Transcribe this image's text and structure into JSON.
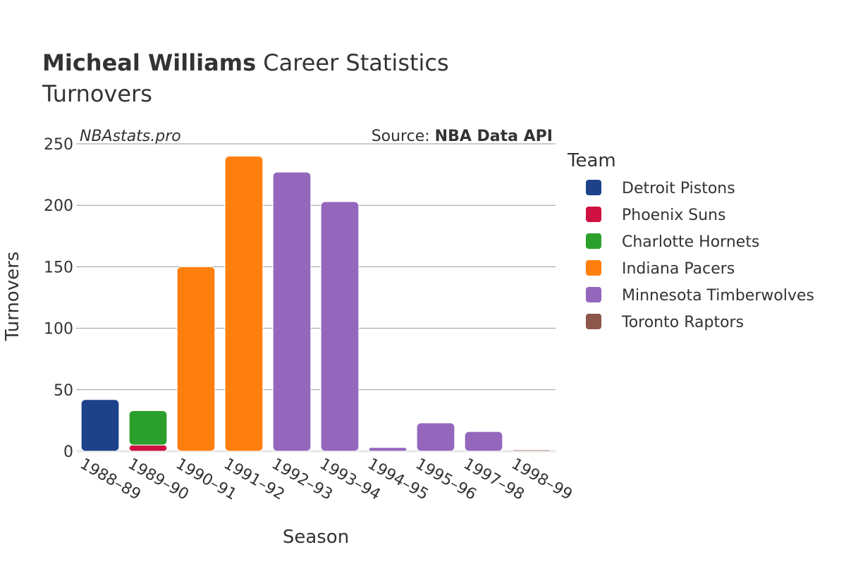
{
  "title": {
    "player": "Micheal Williams",
    "rest": " Career Statistics",
    "subtitle": "Turnovers"
  },
  "watermark": "NBAstats.pro",
  "source": {
    "prefix": "Source: ",
    "name": "NBA Data API"
  },
  "legend": {
    "title": "Team",
    "items": [
      {
        "name": "Detroit Pistons",
        "color": "#1d428a"
      },
      {
        "name": "Phoenix Suns",
        "color": "#ce1141"
      },
      {
        "name": "Charlotte Hornets",
        "color": "#2ca02c"
      },
      {
        "name": "Indiana Pacers",
        "color": "#ff7f0e"
      },
      {
        "name": "Minnesota Timberwolves",
        "color": "#9467bd"
      },
      {
        "name": "Toronto Raptors",
        "color": "#8c564b"
      }
    ]
  },
  "chart_data": {
    "type": "bar",
    "stacked": true,
    "title": "Micheal Williams Career Statistics Turnovers",
    "xlabel": "Season",
    "ylabel": "Turnovers",
    "ylim": [
      0,
      250
    ],
    "yticks": [
      0,
      50,
      100,
      150,
      200,
      250
    ],
    "grid": true,
    "legend_position": "right",
    "categories": [
      "1988–89",
      "1989–90",
      "1990–91",
      "1991–92",
      "1992–93",
      "1993–94",
      "1994–95",
      "1995–96",
      "1997–98",
      "1998–99"
    ],
    "series": [
      {
        "name": "Detroit Pistons",
        "values": [
          42,
          0,
          0,
          0,
          0,
          0,
          0,
          0,
          0,
          0
        ]
      },
      {
        "name": "Phoenix Suns",
        "values": [
          0,
          5,
          0,
          0,
          0,
          0,
          0,
          0,
          0,
          0
        ]
      },
      {
        "name": "Charlotte Hornets",
        "values": [
          0,
          28,
          0,
          0,
          0,
          0,
          0,
          0,
          0,
          0
        ]
      },
      {
        "name": "Indiana Pacers",
        "values": [
          0,
          0,
          150,
          240,
          0,
          0,
          0,
          0,
          0,
          0
        ]
      },
      {
        "name": "Minnesota Timberwolves",
        "values": [
          0,
          0,
          0,
          0,
          227,
          203,
          3,
          23,
          16,
          0
        ]
      },
      {
        "name": "Toronto Raptors",
        "values": [
          0,
          0,
          0,
          0,
          0,
          0,
          0,
          0,
          0,
          1
        ]
      }
    ]
  }
}
